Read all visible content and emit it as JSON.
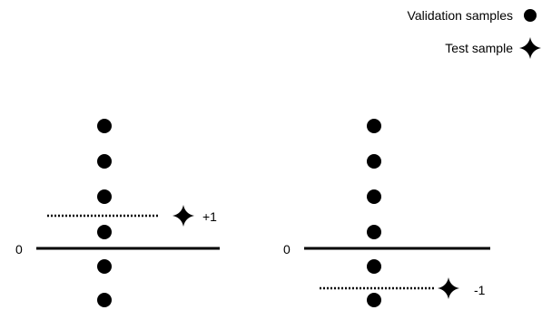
{
  "legend": {
    "items": [
      {
        "label": "Validation samples",
        "icon": "circle-marker"
      },
      {
        "label": "Test sample",
        "icon": "four-point-star-marker"
      }
    ]
  },
  "panels": [
    {
      "baseline_label": "0",
      "validation_samples": 6,
      "test_sample_label": "+1"
    },
    {
      "baseline_label": "0",
      "validation_samples": 6,
      "test_sample_label": "-1"
    }
  ],
  "colors": {
    "ink": "#000000",
    "background": "#ffffff"
  }
}
